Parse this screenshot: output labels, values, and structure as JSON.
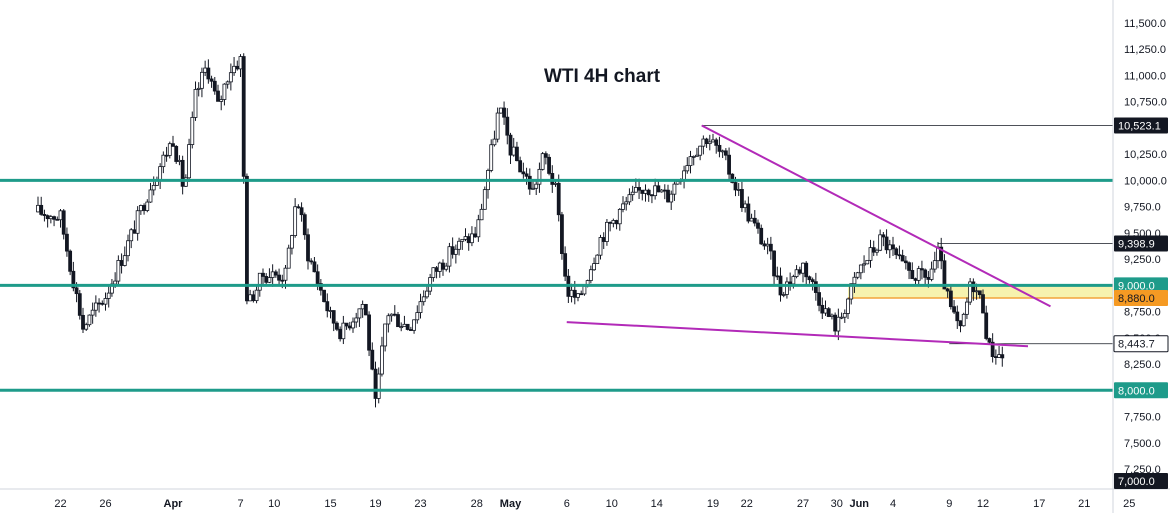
{
  "chart_data": {
    "type": "candlestick",
    "title": "WTI 4H chart",
    "ylim": [
      7000,
      11700
    ],
    "y_ticks": [
      7250,
      7500,
      7750,
      8000,
      8250,
      8500,
      8750,
      9000,
      9250,
      9500,
      9750,
      10000,
      10250,
      10500,
      10750,
      11000,
      11250,
      11500
    ],
    "x_ticks": [
      {
        "label": "22",
        "day": 2
      },
      {
        "label": "26",
        "day": 6
      },
      {
        "label": "Apr",
        "day": 12,
        "bold": true
      },
      {
        "label": "7",
        "day": 18
      },
      {
        "label": "10",
        "day": 21
      },
      {
        "label": "15",
        "day": 26
      },
      {
        "label": "19",
        "day": 30
      },
      {
        "label": "23",
        "day": 34
      },
      {
        "label": "28",
        "day": 39
      },
      {
        "label": "May",
        "day": 42,
        "bold": true
      },
      {
        "label": "6",
        "day": 47
      },
      {
        "label": "10",
        "day": 51
      },
      {
        "label": "14",
        "day": 55
      },
      {
        "label": "19",
        "day": 60
      },
      {
        "label": "22",
        "day": 63
      },
      {
        "label": "27",
        "day": 68
      },
      {
        "label": "30",
        "day": 71
      },
      {
        "label": "Jun",
        "day": 73,
        "bold": true
      },
      {
        "label": "4",
        "day": 76
      },
      {
        "label": "9",
        "day": 81
      },
      {
        "label": "12",
        "day": 84
      },
      {
        "label": "17",
        "day": 89
      },
      {
        "label": "21",
        "day": 93
      },
      {
        "label": "25",
        "day": 97
      }
    ],
    "horizontal_levels": [
      {
        "value": 10000,
        "label": "10,000.0"
      },
      {
        "value": 9000,
        "label": "9,000.0"
      },
      {
        "value": 8000,
        "label": "8,000.0"
      }
    ],
    "price_badges": [
      {
        "value": 10523.1,
        "label": "10,523.1",
        "style": "black"
      },
      {
        "value": 9398.9,
        "label": "9,398.9",
        "style": "black"
      },
      {
        "value": 9000,
        "label": "9,000.0",
        "style": "green"
      },
      {
        "value": 8880,
        "label": "8,880.0",
        "style": "orange"
      },
      {
        "value": 8443.7,
        "label": "8,443.7",
        "style": "outline"
      },
      {
        "value": 8000,
        "label": "8,000.0",
        "style": "green"
      },
      {
        "value": 7000,
        "label": "7,000.0",
        "style": "black"
      }
    ],
    "reference_lines": [
      {
        "value": 10523.1,
        "from_day": 59
      },
      {
        "value": 9398.9,
        "from_day": 80
      },
      {
        "value": 8443.7,
        "from_day": 81
      }
    ],
    "zone": {
      "from": 8880,
      "to": 9000,
      "from_day": 72
    },
    "trendlines": [
      {
        "name": "upper",
        "points": [
          [
            59,
            10523.1
          ],
          [
            90,
            8800
          ]
        ]
      },
      {
        "name": "lower",
        "points": [
          [
            47,
            8650
          ],
          [
            88,
            8420
          ]
        ]
      }
    ],
    "anchors": [
      {
        "day": 0,
        "value": 9700
      },
      {
        "day": 2,
        "value": 9650
      },
      {
        "day": 4,
        "value": 8600
      },
      {
        "day": 6,
        "value": 8900
      },
      {
        "day": 8,
        "value": 9400
      },
      {
        "day": 10,
        "value": 9950
      },
      {
        "day": 12,
        "value": 10400
      },
      {
        "day": 13,
        "value": 9900
      },
      {
        "day": 14,
        "value": 10800
      },
      {
        "day": 15,
        "value": 11100
      },
      {
        "day": 16,
        "value": 10700
      },
      {
        "day": 17,
        "value": 11050
      },
      {
        "day": 18,
        "value": 11150
      },
      {
        "day": 18.6,
        "value": 8800
      },
      {
        "day": 20,
        "value": 9100
      },
      {
        "day": 22,
        "value": 9100
      },
      {
        "day": 23,
        "value": 9850
      },
      {
        "day": 24,
        "value": 9300
      },
      {
        "day": 26,
        "value": 8700
      },
      {
        "day": 27,
        "value": 8550
      },
      {
        "day": 29,
        "value": 8850
      },
      {
        "day": 30,
        "value": 7850
      },
      {
        "day": 31,
        "value": 8750
      },
      {
        "day": 33,
        "value": 8600
      },
      {
        "day": 35,
        "value": 9100
      },
      {
        "day": 37,
        "value": 9350
      },
      {
        "day": 39,
        "value": 9500
      },
      {
        "day": 41,
        "value": 10700
      },
      {
        "day": 42,
        "value": 10300
      },
      {
        "day": 44,
        "value": 9900
      },
      {
        "day": 45,
        "value": 10250
      },
      {
        "day": 46,
        "value": 9900
      },
      {
        "day": 47,
        "value": 8950
      },
      {
        "day": 48,
        "value": 8850
      },
      {
        "day": 50,
        "value": 9450
      },
      {
        "day": 52,
        "value": 9750
      },
      {
        "day": 54,
        "value": 9950
      },
      {
        "day": 56,
        "value": 9850
      },
      {
        "day": 58,
        "value": 10250
      },
      {
        "day": 59.5,
        "value": 10420
      },
      {
        "day": 61,
        "value": 10200
      },
      {
        "day": 63,
        "value": 9700
      },
      {
        "day": 65,
        "value": 9300
      },
      {
        "day": 66,
        "value": 8950
      },
      {
        "day": 68,
        "value": 9200
      },
      {
        "day": 70,
        "value": 8750
      },
      {
        "day": 71,
        "value": 8600
      },
      {
        "day": 73,
        "value": 9150
      },
      {
        "day": 75,
        "value": 9450
      },
      {
        "day": 77,
        "value": 9150
      },
      {
        "day": 79,
        "value": 9050
      },
      {
        "day": 80,
        "value": 9300
      },
      {
        "day": 81,
        "value": 8800
      },
      {
        "day": 82,
        "value": 8550
      },
      {
        "day": 83,
        "value": 9050
      },
      {
        "day": 84,
        "value": 8800
      },
      {
        "day": 84.5,
        "value": 8400
      },
      {
        "day": 86,
        "value": 8300
      }
    ]
  }
}
